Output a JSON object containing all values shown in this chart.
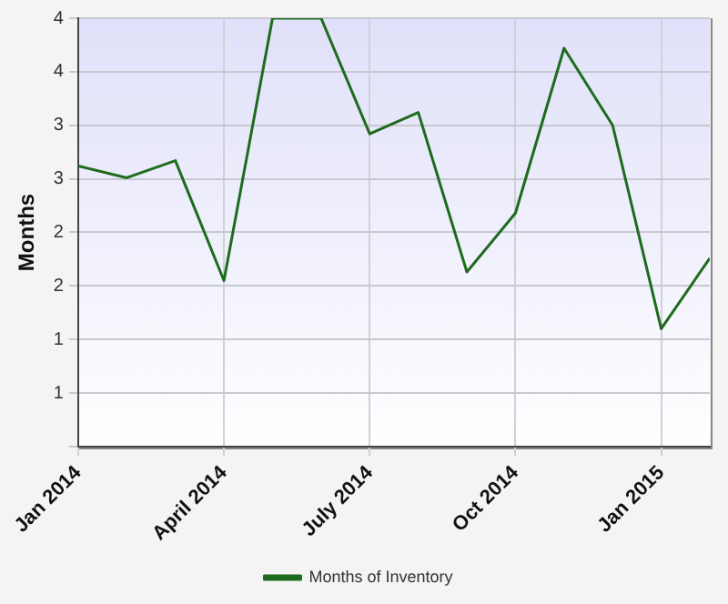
{
  "chart_data": {
    "type": "line",
    "ylabel": "Months",
    "x": [
      "2014-01",
      "2014-02",
      "2014-03",
      "2014-04",
      "2014-05",
      "2014-06",
      "2014-07",
      "2014-08",
      "2014-09",
      "2014-10",
      "2014-11",
      "2014-12",
      "2015-01",
      "2015-02"
    ],
    "series": [
      {
        "name": "Months of Inventory",
        "color": "#1e6b1e",
        "values": [
          2.62,
          2.51,
          2.67,
          1.55,
          4.0,
          4.0,
          2.92,
          3.12,
          1.63,
          2.18,
          3.72,
          3.0,
          1.1,
          1.76
        ]
      }
    ],
    "xlim": [
      "2014-01",
      "2015-02"
    ],
    "xticks": [
      {
        "value": "2014-01",
        "label": "Jan 2014"
      },
      {
        "value": "2014-04",
        "label": "April 2014"
      },
      {
        "value": "2014-07",
        "label": "July 2014"
      },
      {
        "value": "2014-10",
        "label": "Oct 2014"
      },
      {
        "value": "2015-01",
        "label": "Jan 2015"
      }
    ],
    "ylim": [
      0,
      4
    ],
    "yticks": [
      {
        "value": 0,
        "label": null
      },
      {
        "value": 0.5,
        "label": "1"
      },
      {
        "value": 1,
        "label": "1"
      },
      {
        "value": 1.5,
        "label": "2"
      },
      {
        "value": 2,
        "label": "2"
      },
      {
        "value": 2.5,
        "label": "3"
      },
      {
        "value": 3,
        "label": "3"
      },
      {
        "value": 3.5,
        "label": "4"
      },
      {
        "value": 4,
        "label": "4"
      }
    ],
    "grid": true,
    "legend": "bottom",
    "marker": "none",
    "line_style": "solid"
  }
}
